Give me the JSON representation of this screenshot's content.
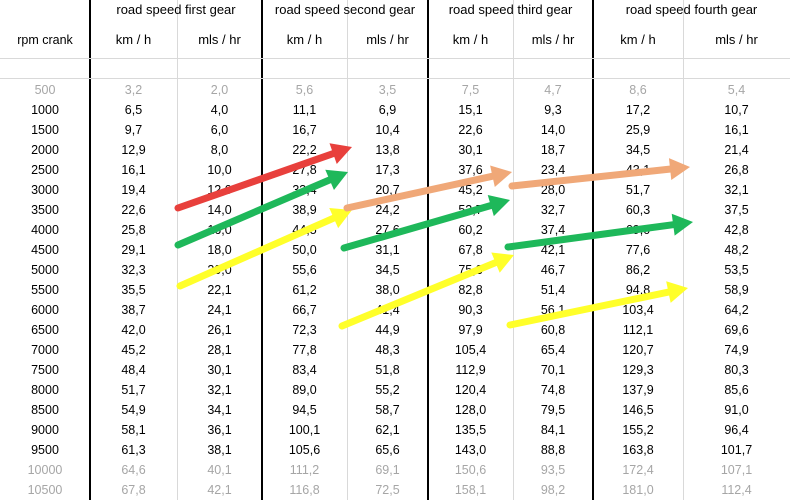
{
  "header": {
    "groups": [
      "road speed  first gear",
      "road speed second gear",
      "road speed third gear",
      "road speed fourth gear"
    ],
    "rpm_label": "rpm crank",
    "units": [
      "km / h",
      "mls / hr",
      "km / h",
      "mls / hr",
      "km / h",
      "mls / hr",
      "km / h",
      "mls / hr"
    ]
  },
  "rows": [
    {
      "muted": true,
      "cells": [
        "500",
        "3,2",
        "2,0",
        "5,6",
        "3,5",
        "7,5",
        "4,7",
        "8,6",
        "5,4"
      ]
    },
    {
      "muted": false,
      "cells": [
        "1000",
        "6,5",
        "4,0",
        "11,1",
        "6,9",
        "15,1",
        "9,3",
        "17,2",
        "10,7"
      ]
    },
    {
      "muted": false,
      "cells": [
        "1500",
        "9,7",
        "6,0",
        "16,7",
        "10,4",
        "22,6",
        "14,0",
        "25,9",
        "16,1"
      ]
    },
    {
      "muted": false,
      "cells": [
        "2000",
        "12,9",
        "8,0",
        "22,2",
        "13,8",
        "30,1",
        "18,7",
        "34,5",
        "21,4"
      ]
    },
    {
      "muted": false,
      "cells": [
        "2500",
        "16,1",
        "10,0",
        "27,8",
        "17,3",
        "37,6",
        "23,4",
        "43,1",
        "26,8"
      ]
    },
    {
      "muted": false,
      "cells": [
        "3000",
        "19,4",
        "12,0",
        "33,4",
        "20,7",
        "45,2",
        "28,0",
        "51,7",
        "32,1"
      ]
    },
    {
      "muted": false,
      "cells": [
        "3500",
        "22,6",
        "14,0",
        "38,9",
        "24,2",
        "52,7",
        "32,7",
        "60,3",
        "37,5"
      ]
    },
    {
      "muted": false,
      "cells": [
        "4000",
        "25,8",
        "16,0",
        "44,5",
        "27,6",
        "60,2",
        "37,4",
        "69,0",
        "42,8"
      ]
    },
    {
      "muted": false,
      "cells": [
        "4500",
        "29,1",
        "18,0",
        "50,0",
        "31,1",
        "67,8",
        "42,1",
        "77,6",
        "48,2"
      ]
    },
    {
      "muted": false,
      "cells": [
        "5000",
        "32,3",
        "20,0",
        "55,6",
        "34,5",
        "75,3",
        "46,7",
        "86,2",
        "53,5"
      ]
    },
    {
      "muted": false,
      "cells": [
        "5500",
        "35,5",
        "22,1",
        "61,2",
        "38,0",
        "82,8",
        "51,4",
        "94,8",
        "58,9"
      ]
    },
    {
      "muted": false,
      "cells": [
        "6000",
        "38,7",
        "24,1",
        "66,7",
        "41,4",
        "90,3",
        "56,1",
        "103,4",
        "64,2"
      ]
    },
    {
      "muted": false,
      "cells": [
        "6500",
        "42,0",
        "26,1",
        "72,3",
        "44,9",
        "97,9",
        "60,8",
        "112,1",
        "69,6"
      ]
    },
    {
      "muted": false,
      "cells": [
        "7000",
        "45,2",
        "28,1",
        "77,8",
        "48,3",
        "105,4",
        "65,4",
        "120,7",
        "74,9"
      ]
    },
    {
      "muted": false,
      "cells": [
        "7500",
        "48,4",
        "30,1",
        "83,4",
        "51,8",
        "112,9",
        "70,1",
        "129,3",
        "80,3"
      ]
    },
    {
      "muted": false,
      "cells": [
        "8000",
        "51,7",
        "32,1",
        "89,0",
        "55,2",
        "120,4",
        "74,8",
        "137,9",
        "85,6"
      ]
    },
    {
      "muted": false,
      "cells": [
        "8500",
        "54,9",
        "34,1",
        "94,5",
        "58,7",
        "128,0",
        "79,5",
        "146,5",
        "91,0"
      ]
    },
    {
      "muted": false,
      "cells": [
        "9000",
        "58,1",
        "36,1",
        "100,1",
        "62,1",
        "135,5",
        "84,1",
        "155,2",
        "96,4"
      ]
    },
    {
      "muted": false,
      "cells": [
        "9500",
        "61,3",
        "38,1",
        "105,6",
        "65,6",
        "143,0",
        "88,8",
        "163,8",
        "101,7"
      ]
    },
    {
      "muted": true,
      "cells": [
        "10000",
        "64,6",
        "40,1",
        "111,2",
        "69,1",
        "150,6",
        "93,5",
        "172,4",
        "107,1"
      ]
    },
    {
      "muted": true,
      "cells": [
        "10500",
        "67,8",
        "42,1",
        "116,8",
        "72,5",
        "158,1",
        "98,2",
        "181,0",
        "112,4"
      ]
    }
  ],
  "arrow_colors": {
    "red": "#e8403c",
    "green": "#1eb85a",
    "orange": "#f0a878",
    "yellow": "#ffff2a"
  }
}
